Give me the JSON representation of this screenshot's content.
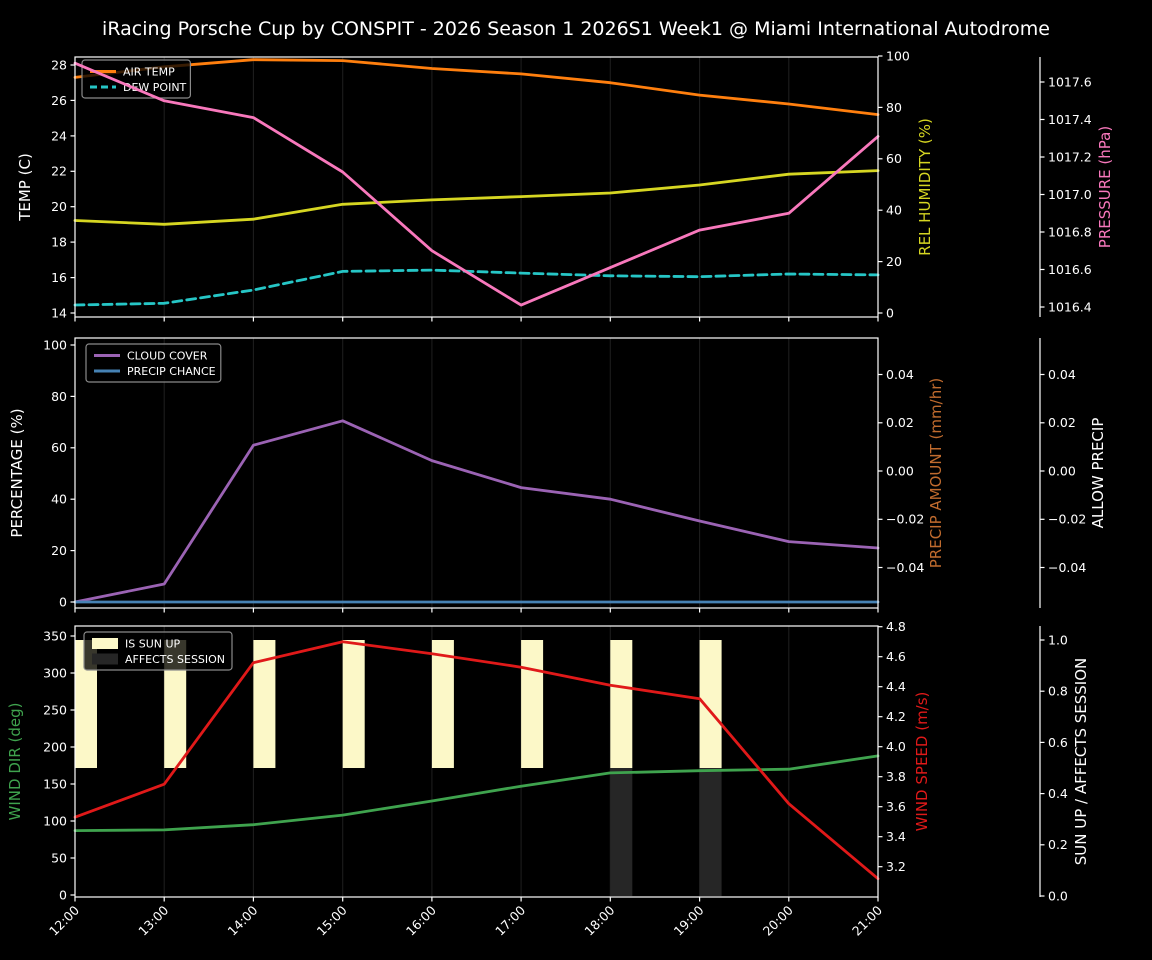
{
  "title": "iRacing Porsche Cup by CONSPIT - 2026 Season 1 2026S1 Week1 @ Miami International Autodrome",
  "hours": [
    12,
    13,
    14,
    15,
    16,
    17,
    18,
    19,
    20,
    21
  ],
  "x_tick_labels": [
    "12:00",
    "13:00",
    "14:00",
    "15:00",
    "16:00",
    "17:00",
    "18:00",
    "19:00",
    "20:00",
    "21:00"
  ],
  "colors": {
    "background": "#000000",
    "text": "#ffffff",
    "grid": "#1d1d1d",
    "spine": "#ffffff",
    "legend_border": "#8a8a8a"
  },
  "chart_data": [
    {
      "type": "line",
      "axes": {
        "left": {
          "label": "TEMP (C)",
          "label_color": "#ffffff",
          "ticks": [
            [
              14,
              "14"
            ],
            [
              16,
              "16"
            ],
            [
              18,
              "18"
            ],
            [
              20,
              "20"
            ],
            [
              22,
              "22"
            ],
            [
              24,
              "24"
            ],
            [
              26,
              "26"
            ],
            [
              28,
              "28"
            ]
          ]
        },
        "right1": {
          "label": "REL HUMIDITY (%)",
          "label_color": "#d6d622",
          "ticks": [
            [
              0,
              "0"
            ],
            [
              20,
              "20"
            ],
            [
              40,
              "40"
            ],
            [
              60,
              "60"
            ],
            [
              80,
              "80"
            ],
            [
              100,
              "100"
            ]
          ]
        },
        "right2": {
          "label": "PRESSURE (hPa)",
          "label_color": "#f878bc",
          "ticks": [
            [
              1016.4,
              "1016.4"
            ],
            [
              1016.6,
              "1016.6"
            ],
            [
              1016.8,
              "1016.8"
            ],
            [
              1017.0,
              "1017.0"
            ],
            [
              1017.2,
              "1017.2"
            ],
            [
              1017.4,
              "1017.4"
            ],
            [
              1017.6,
              "1017.6"
            ]
          ]
        }
      },
      "series": [
        {
          "name": "AIR TEMP",
          "axis": "left",
          "color": "#ff7f0e",
          "style": "solid",
          "in_legend": true,
          "values": [
            27.3,
            27.9,
            28.3,
            28.25,
            27.8,
            27.5,
            27.0,
            26.3,
            25.8,
            25.2
          ]
        },
        {
          "name": "DEW POINT",
          "axis": "left",
          "color": "#26c6c6",
          "style": "dashed",
          "in_legend": true,
          "values": [
            14.45,
            14.55,
            15.3,
            16.35,
            16.42,
            16.25,
            16.1,
            16.05,
            16.2,
            16.15
          ]
        },
        {
          "name": "REL HUMIDITY",
          "axis": "right1",
          "color": "#d6d622",
          "style": "solid",
          "in_legend": false,
          "values": [
            36,
            34.5,
            36.5,
            42.3,
            44,
            45.3,
            46.7,
            49.8,
            54,
            55.4
          ]
        },
        {
          "name": "PRESSURE",
          "axis": "right2",
          "color": "#f878bc",
          "style": "solid",
          "in_legend": false,
          "values": [
            1017.7,
            1017.5,
            1017.41,
            1017.12,
            1016.7,
            1016.41,
            1016.61,
            1016.81,
            1016.9,
            1017.31
          ]
        }
      ]
    },
    {
      "type": "line",
      "axes": {
        "left": {
          "label": "PERCENTAGE (%)",
          "label_color": "#ffffff",
          "ticks": [
            [
              0,
              "0"
            ],
            [
              20,
              "20"
            ],
            [
              40,
              "40"
            ],
            [
              60,
              "60"
            ],
            [
              80,
              "80"
            ],
            [
              100,
              "100"
            ]
          ]
        },
        "right1": {
          "label": "PRECIP AMOUNT (mm/hr)",
          "label_color": "#c06b2e",
          "ticks": [
            [
              0.04,
              "0.04"
            ],
            [
              0.02,
              "0.02"
            ],
            [
              0,
              "0.00"
            ],
            [
              -0.02,
              "−0.02"
            ],
            [
              -0.04,
              "−0.04"
            ]
          ]
        },
        "right2": {
          "label": "ALLOW PRECIP",
          "label_color": "#ffffff",
          "ticks": [
            [
              0.04,
              "0.04"
            ],
            [
              0.02,
              "0.02"
            ],
            [
              0,
              "0.00"
            ],
            [
              -0.02,
              "−0.02"
            ],
            [
              -0.04,
              "−0.04"
            ]
          ]
        }
      },
      "series": [
        {
          "name": "CLOUD COVER",
          "axis": "left",
          "color": "#9b63b4",
          "style": "solid",
          "in_legend": true,
          "values": [
            0,
            7,
            61,
            70.5,
            55,
            44.5,
            40,
            31.5,
            23.5,
            21
          ]
        },
        {
          "name": "PRECIP CHANCE",
          "axis": "left",
          "color": "#4682b4",
          "style": "solid",
          "in_legend": true,
          "values": [
            0,
            0,
            0,
            0,
            0,
            0,
            0,
            0,
            0,
            0
          ]
        }
      ]
    },
    {
      "type": "line+bar",
      "axes": {
        "left": {
          "label": "WIND DIR (deg)",
          "label_color": "#3fa34e",
          "ticks": [
            [
              0,
              "0"
            ],
            [
              50,
              "50"
            ],
            [
              100,
              "100"
            ],
            [
              150,
              "150"
            ],
            [
              200,
              "200"
            ],
            [
              250,
              "250"
            ],
            [
              300,
              "300"
            ],
            [
              350,
              "350"
            ]
          ]
        },
        "right1": {
          "label": "WIND SPEED (m/s)",
          "label_color": "#e01919",
          "ticks": [
            [
              3.2,
              "3.2"
            ],
            [
              3.4,
              "3.4"
            ],
            [
              3.6,
              "3.6"
            ],
            [
              3.8,
              "3.8"
            ],
            [
              4.0,
              "4.0"
            ],
            [
              4.2,
              "4.2"
            ],
            [
              4.4,
              "4.4"
            ],
            [
              4.6,
              "4.6"
            ],
            [
              4.8,
              "4.8"
            ]
          ]
        },
        "right2": {
          "label": "SUN UP / AFFECTS SESSION",
          "label_color": "#ffffff",
          "ticks": [
            [
              0,
              "0.0"
            ],
            [
              0.2,
              "0.2"
            ],
            [
              0.4,
              "0.4"
            ],
            [
              0.6,
              "0.6"
            ],
            [
              0.8,
              "0.8"
            ],
            [
              1,
              "1.0"
            ]
          ]
        }
      },
      "series": [
        {
          "name": "IS SUN UP",
          "type": "bar",
          "axis": "right2",
          "color": "#fcf8c8",
          "bar_band": [
            0.5,
            1.0
          ],
          "in_legend": true,
          "values": [
            1,
            1,
            1,
            1,
            1,
            1,
            1,
            1,
            0,
            0
          ]
        },
        {
          "name": "AFFECTS SESSION",
          "type": "bar",
          "axis": "right2",
          "color": "#262626",
          "bar_band": [
            0.0,
            0.5
          ],
          "in_legend": true,
          "values": [
            0,
            0,
            0,
            0,
            0,
            0,
            1,
            1,
            0,
            0
          ]
        },
        {
          "name": "WIND DIR",
          "axis": "left",
          "color": "#3fa34e",
          "style": "solid",
          "in_legend": false,
          "values": [
            87,
            88,
            95,
            108,
            127,
            147,
            165,
            168,
            170,
            188
          ]
        },
        {
          "name": "WIND SPEED",
          "axis": "right1",
          "color": "#e01919",
          "style": "solid",
          "in_legend": false,
          "values": [
            3.53,
            3.75,
            4.56,
            4.7,
            4.62,
            4.53,
            4.41,
            4.32,
            3.62,
            3.12
          ]
        }
      ]
    }
  ]
}
